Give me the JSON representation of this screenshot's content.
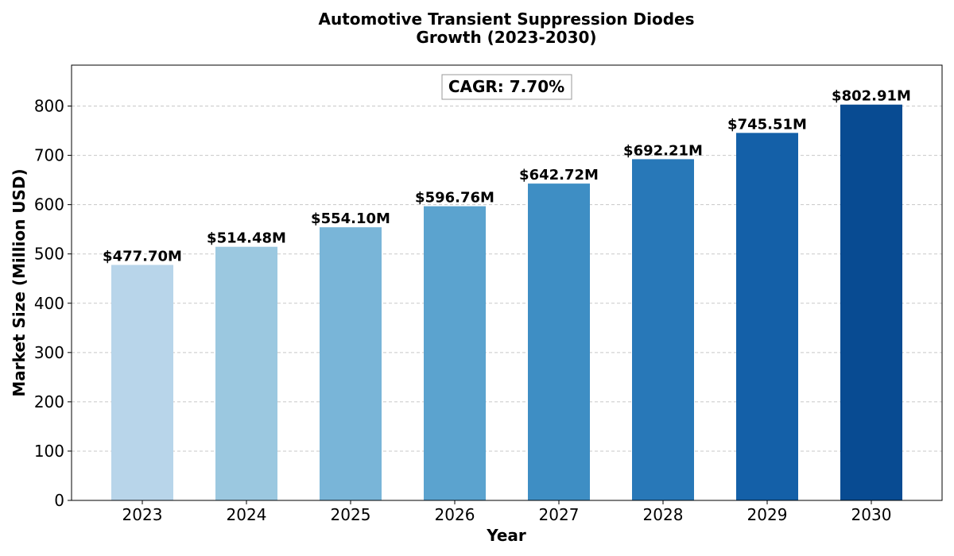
{
  "chart_data": {
    "type": "bar",
    "title_line1": "Automotive Transient Suppression Diodes",
    "title_line2": "Growth (2023-2030)",
    "xlabel": "Year",
    "ylabel": "Market Size (Million USD)",
    "categories": [
      "2023",
      "2024",
      "2025",
      "2026",
      "2027",
      "2028",
      "2029",
      "2030"
    ],
    "values": [
      477.7,
      514.48,
      554.1,
      596.76,
      642.72,
      692.21,
      745.51,
      802.91
    ],
    "data_labels": [
      "$477.70M",
      "$514.48M",
      "$554.10M",
      "$596.76M",
      "$642.72M",
      "$692.21M",
      "$745.51M",
      "$802.91M"
    ],
    "bar_colors": [
      "#b8d5ea",
      "#9bc8e0",
      "#79b5d8",
      "#5ba3cf",
      "#3e8ec4",
      "#2878b8",
      "#1460a8",
      "#084b92"
    ],
    "ylim": [
      0,
      883
    ],
    "yticks": [
      0,
      100,
      200,
      300,
      400,
      500,
      600,
      700,
      800
    ],
    "grid": "horizontal dashed",
    "annotation": "CAGR: 7.70%"
  }
}
